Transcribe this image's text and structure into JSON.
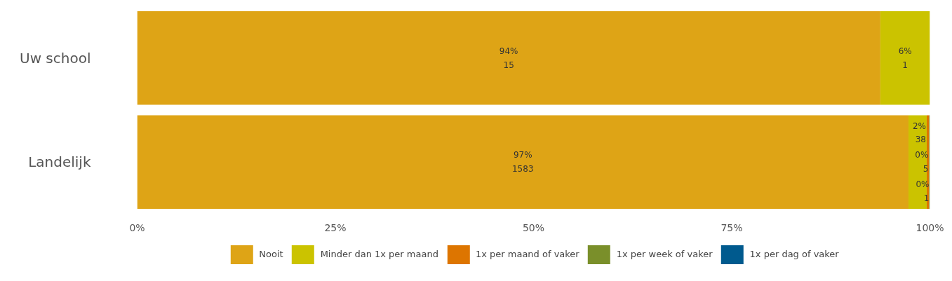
{
  "chart_data": {
    "type": "bar",
    "orientation": "horizontal",
    "stacked": true,
    "categories": [
      "Uw school",
      "Landelijk"
    ],
    "series": [
      {
        "name": "Nooit",
        "color": "#dea416",
        "values": [
          93.75,
          97.3
        ],
        "value_labels": [
          "94%\n15",
          "97%\n1583"
        ]
      },
      {
        "name": "Minder dan 1x per maand",
        "color": "#cbc300",
        "values": [
          6.25,
          2.3
        ],
        "value_labels": [
          "6%\n1",
          "2%\n38"
        ]
      },
      {
        "name": "1x per maand of vaker",
        "color": "#dd7500",
        "values": [
          0,
          0.3
        ],
        "value_labels": [
          null,
          "0%\n5"
        ]
      },
      {
        "name": "1x per week of vaker",
        "color": "#7a8f2a",
        "values": [
          0,
          0.1
        ],
        "value_labels": [
          null,
          "0%\n1"
        ]
      },
      {
        "name": "1x per dag of vaker",
        "color": "#005a8e",
        "values": [
          0,
          0
        ],
        "value_labels": [
          null,
          null
        ]
      }
    ],
    "xlim": [
      0,
      100
    ],
    "xticks": [
      {
        "value": 0,
        "label": "0%"
      },
      {
        "value": 25,
        "label": "25%"
      },
      {
        "value": 50,
        "label": "50%"
      },
      {
        "value": 75,
        "label": "75%"
      },
      {
        "value": 100,
        "label": "100%"
      }
    ],
    "grid": false,
    "legend": "bottom"
  }
}
